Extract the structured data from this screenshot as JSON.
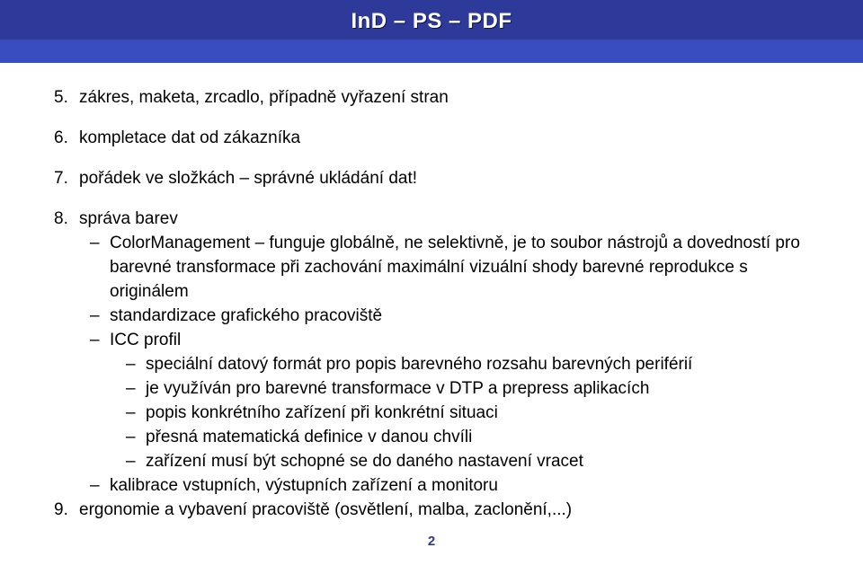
{
  "header": {
    "title": "InD – PS – PDF"
  },
  "items": {
    "n5": {
      "num": "5.",
      "text": "zákres, maketa, zrcadlo, případně vyřazení stran"
    },
    "n6": {
      "num": "6.",
      "text": "kompletace dat od zákazníka"
    },
    "n7": {
      "num": "7.",
      "text": "pořádek ve složkách – správné ukládání dat!"
    },
    "n8": {
      "num": "8.",
      "text": "správa barev"
    },
    "n9": {
      "num": "9.",
      "text": "ergonomie a vybavení pracoviště (osvětlení, malba, zaclonění,...)"
    }
  },
  "sub8": {
    "a": "ColorManagement – funguje globálně, ne selektivně, je to soubor nástrojů a dovedností pro barevné transformace při zachování maximální vizuální shody barevné reprodukce s originálem",
    "b": "standardizace grafického pracoviště",
    "c": "ICC profil",
    "d": "kalibrace vstupních, výstupních zařízení a monitoru"
  },
  "sub8c": {
    "a": "speciální datový formát pro popis barevného rozsahu barevných periférií",
    "b": "je využíván pro barevné transformace v DTP a prepress aplikacích",
    "c": "popis konkrétního zařízení při konkrétní situaci",
    "d": "přesná matematická definice v danou chvíli",
    "e": "zařízení musí být schopné se do daného nastavení vracet"
  },
  "pageNumber": "2",
  "colors": {
    "band": "#2d3a9a",
    "subband": "#3a4dc0",
    "text": "#000000",
    "white": "#ffffff"
  }
}
